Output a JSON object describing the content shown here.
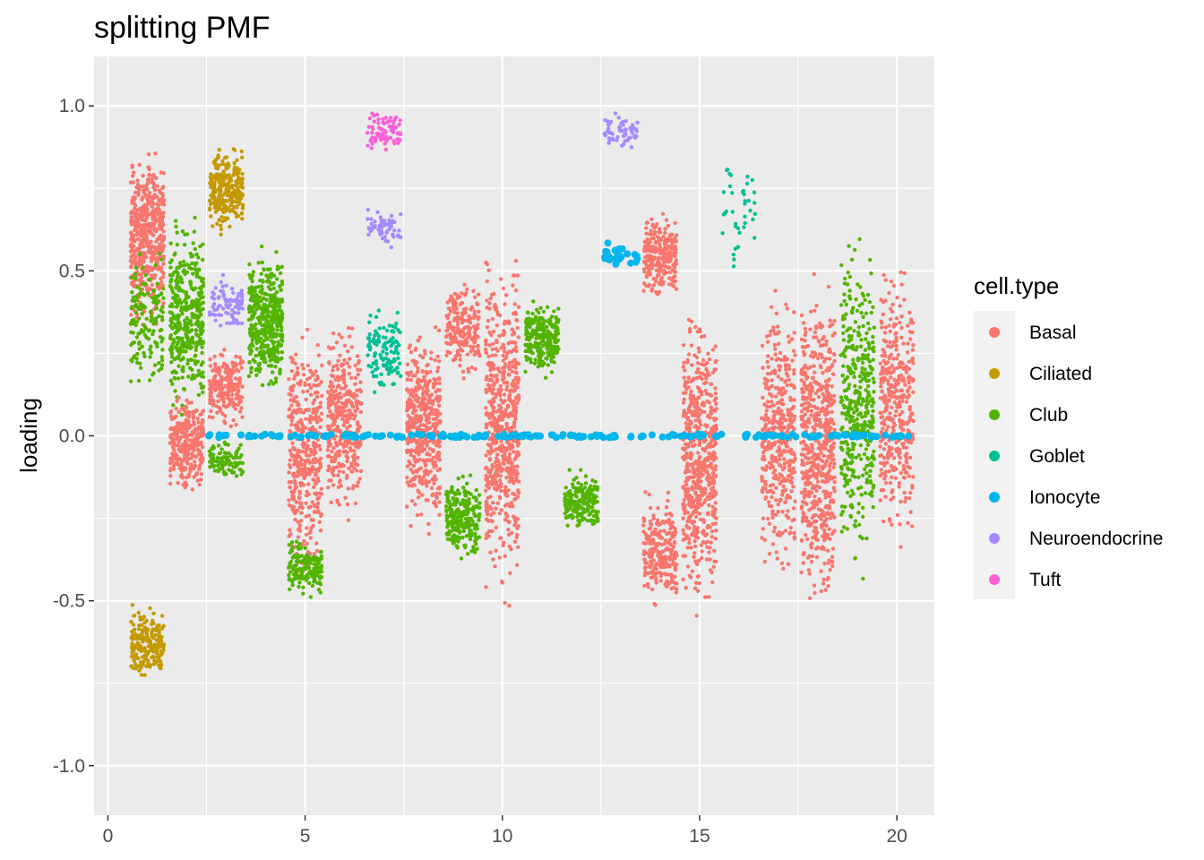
{
  "chart_data": {
    "type": "scatter",
    "title": "splitting PMF",
    "xlabel": "",
    "ylabel": "loading",
    "xlim": [
      -0.35,
      20.95
    ],
    "ylim": [
      -1.15,
      1.15
    ],
    "x_ticks": [
      0,
      5,
      10,
      15,
      20
    ],
    "x_tick_labels": [
      "0",
      "5",
      "10",
      "15",
      "20"
    ],
    "y_ticks": [
      1.0,
      0.5,
      0.0,
      -0.5,
      -1.0
    ],
    "y_tick_labels": [
      "1.0",
      "0.5",
      "0.0",
      "-0.5",
      "-1.0"
    ],
    "grid": true,
    "legend": {
      "title": "cell.type",
      "position": "right"
    },
    "series": [
      {
        "name": "Basal",
        "color": "#F8766D"
      },
      {
        "name": "Ciliated",
        "color": "#C49A00"
      },
      {
        "name": "Club",
        "color": "#53B400"
      },
      {
        "name": "Goblet",
        "color": "#00C094"
      },
      {
        "name": "Ionocyte",
        "color": "#00B6EB"
      },
      {
        "name": "Neuroendocrine",
        "color": "#A58AFF"
      },
      {
        "name": "Tuft",
        "color": "#FB61D7"
      }
    ],
    "clusters": [
      {
        "series": "Basal",
        "x": 1,
        "y_range": [
          0.3,
          0.9
        ],
        "n": 500
      },
      {
        "series": "Club",
        "x": 1,
        "y_range": [
          0.1,
          0.6
        ],
        "n": 150
      },
      {
        "series": "Ciliated",
        "x": 1,
        "y_range": [
          -0.75,
          -0.5
        ],
        "n": 200
      },
      {
        "series": "Club",
        "x": 2,
        "y_range": [
          0.0,
          0.7
        ],
        "n": 400
      },
      {
        "series": "Basal",
        "x": 2,
        "y_range": [
          -0.2,
          0.15
        ],
        "n": 300
      },
      {
        "series": "Ciliated",
        "x": 3,
        "y_range": [
          0.6,
          0.9
        ],
        "n": 250
      },
      {
        "series": "Neuroendocrine",
        "x": 3,
        "y_range": [
          0.3,
          0.5
        ],
        "n": 80
      },
      {
        "series": "Basal",
        "x": 3,
        "y_range": [
          0.0,
          0.3
        ],
        "n": 200
      },
      {
        "series": "Club",
        "x": 3,
        "y_range": [
          -0.15,
          0.0
        ],
        "n": 100
      },
      {
        "series": "Club",
        "x": 4,
        "y_range": [
          0.1,
          0.6
        ],
        "n": 400
      },
      {
        "series": "Basal",
        "x": 5,
        "y_range": [
          -0.5,
          0.4
        ],
        "n": 400
      },
      {
        "series": "Club",
        "x": 5,
        "y_range": [
          -0.5,
          -0.3
        ],
        "n": 150
      },
      {
        "series": "Basal",
        "x": 6,
        "y_range": [
          -0.3,
          0.4
        ],
        "n": 350
      },
      {
        "series": "Tuft",
        "x": 7,
        "y_range": [
          0.85,
          1.0
        ],
        "n": 80
      },
      {
        "series": "Neuroendocrine",
        "x": 7,
        "y_range": [
          0.55,
          0.7
        ],
        "n": 60
      },
      {
        "series": "Goblet",
        "x": 7,
        "y_range": [
          0.1,
          0.4
        ],
        "n": 120
      },
      {
        "series": "Basal",
        "x": 8,
        "y_range": [
          -0.35,
          0.4
        ],
        "n": 450
      },
      {
        "series": "Club",
        "x": 9,
        "y_range": [
          -0.4,
          -0.1
        ],
        "n": 250
      },
      {
        "series": "Basal",
        "x": 9,
        "y_range": [
          0.15,
          0.5
        ],
        "n": 200
      },
      {
        "series": "Basal",
        "x": 10,
        "y_range": [
          -0.55,
          0.6
        ],
        "n": 600
      },
      {
        "series": "Club",
        "x": 11,
        "y_range": [
          0.15,
          0.45
        ],
        "n": 250
      },
      {
        "series": "Club",
        "x": 12,
        "y_range": [
          -0.3,
          -0.1
        ],
        "n": 200
      },
      {
        "series": "Neuroendocrine",
        "x": 13,
        "y_range": [
          0.85,
          1.0
        ],
        "n": 60
      },
      {
        "series": "Ionocyte",
        "x": 13,
        "y_range": [
          0.5,
          0.6
        ],
        "n": 25
      },
      {
        "series": "Basal",
        "x": 14,
        "y_range": [
          0.4,
          0.7
        ],
        "n": 250
      },
      {
        "series": "Basal",
        "x": 14,
        "y_range": [
          -0.55,
          -0.15
        ],
        "n": 250
      },
      {
        "series": "Basal",
        "x": 15,
        "y_range": [
          -0.6,
          0.45
        ],
        "n": 600
      },
      {
        "series": "Goblet",
        "x": 16,
        "y_range": [
          0.5,
          0.9
        ],
        "n": 40
      },
      {
        "series": "Basal",
        "x": 17,
        "y_range": [
          -0.5,
          0.5
        ],
        "n": 400
      },
      {
        "series": "Basal",
        "x": 18,
        "y_range": [
          -0.6,
          0.55
        ],
        "n": 600
      },
      {
        "series": "Club",
        "x": 19,
        "y_range": [
          -0.5,
          0.7
        ],
        "n": 400
      },
      {
        "series": "Basal",
        "x": 20,
        "y_range": [
          -0.4,
          0.6
        ],
        "n": 400
      },
      {
        "series": "Ionocyte",
        "x_range": [
          2.5,
          20.5
        ],
        "y": 0.0,
        "n": 200
      }
    ]
  }
}
